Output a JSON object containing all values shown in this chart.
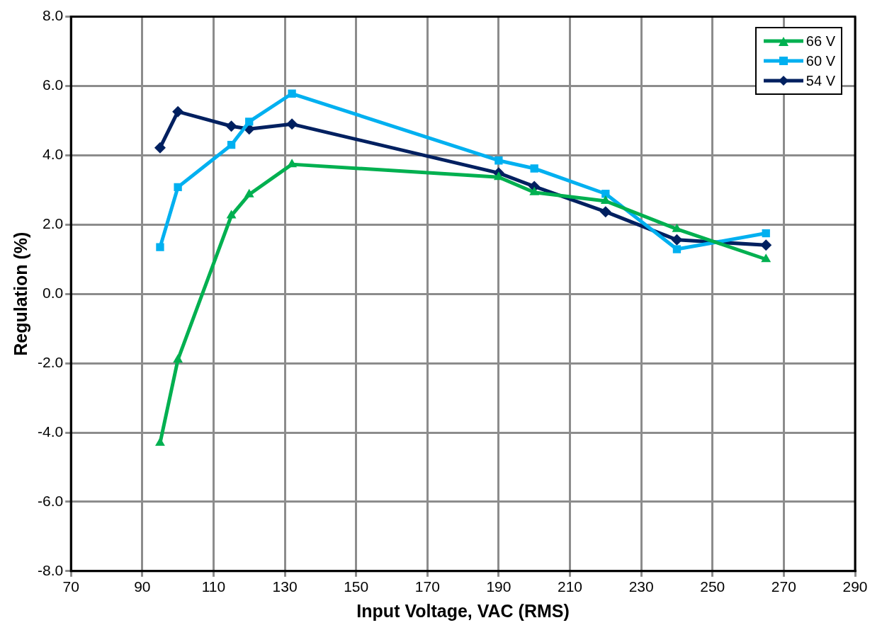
{
  "chart_data": {
    "type": "line",
    "xlabel": "Input Voltage, VAC (RMS)",
    "ylabel": "Regulation (%)",
    "x": [
      95,
      100,
      115,
      120,
      132,
      190,
      200,
      220,
      240,
      265
    ],
    "series": [
      {
        "name": "66 V",
        "color": "#00b050",
        "marker": "triangle",
        "values": [
          -4.3,
          -1.9,
          2.26,
          2.87,
          3.74,
          3.37,
          2.93,
          2.68,
          1.87,
          1.0
        ]
      },
      {
        "name": "60 V",
        "color": "#00b0f0",
        "marker": "square",
        "values": [
          1.35,
          3.08,
          4.3,
          4.97,
          5.78,
          3.85,
          3.62,
          2.89,
          1.29,
          1.75
        ]
      },
      {
        "name": "54 V",
        "color": "#002060",
        "marker": "diamond",
        "values": [
          4.22,
          5.26,
          4.84,
          4.76,
          4.9,
          3.49,
          3.1,
          2.37,
          1.56,
          1.41
        ]
      }
    ],
    "xlim": [
      70,
      290
    ],
    "xticks": [
      70,
      90,
      110,
      130,
      150,
      170,
      190,
      210,
      230,
      250,
      270,
      290
    ],
    "ylim": [
      -8,
      8
    ],
    "yticks": [
      {
        "value": -8,
        "label": "-8.0"
      },
      {
        "value": -6,
        "label": "-6.0"
      },
      {
        "value": -4,
        "label": "-4.0"
      },
      {
        "value": -2,
        "label": "-2.0"
      },
      {
        "value": 0,
        "label": "0.0"
      },
      {
        "value": 2,
        "label": "2.0"
      },
      {
        "value": 4,
        "label": "4.0"
      },
      {
        "value": 6,
        "label": "6.0"
      },
      {
        "value": 8,
        "label": "8.0"
      }
    ],
    "grid": true,
    "legend": "top right",
    "line_style": "solid"
  }
}
